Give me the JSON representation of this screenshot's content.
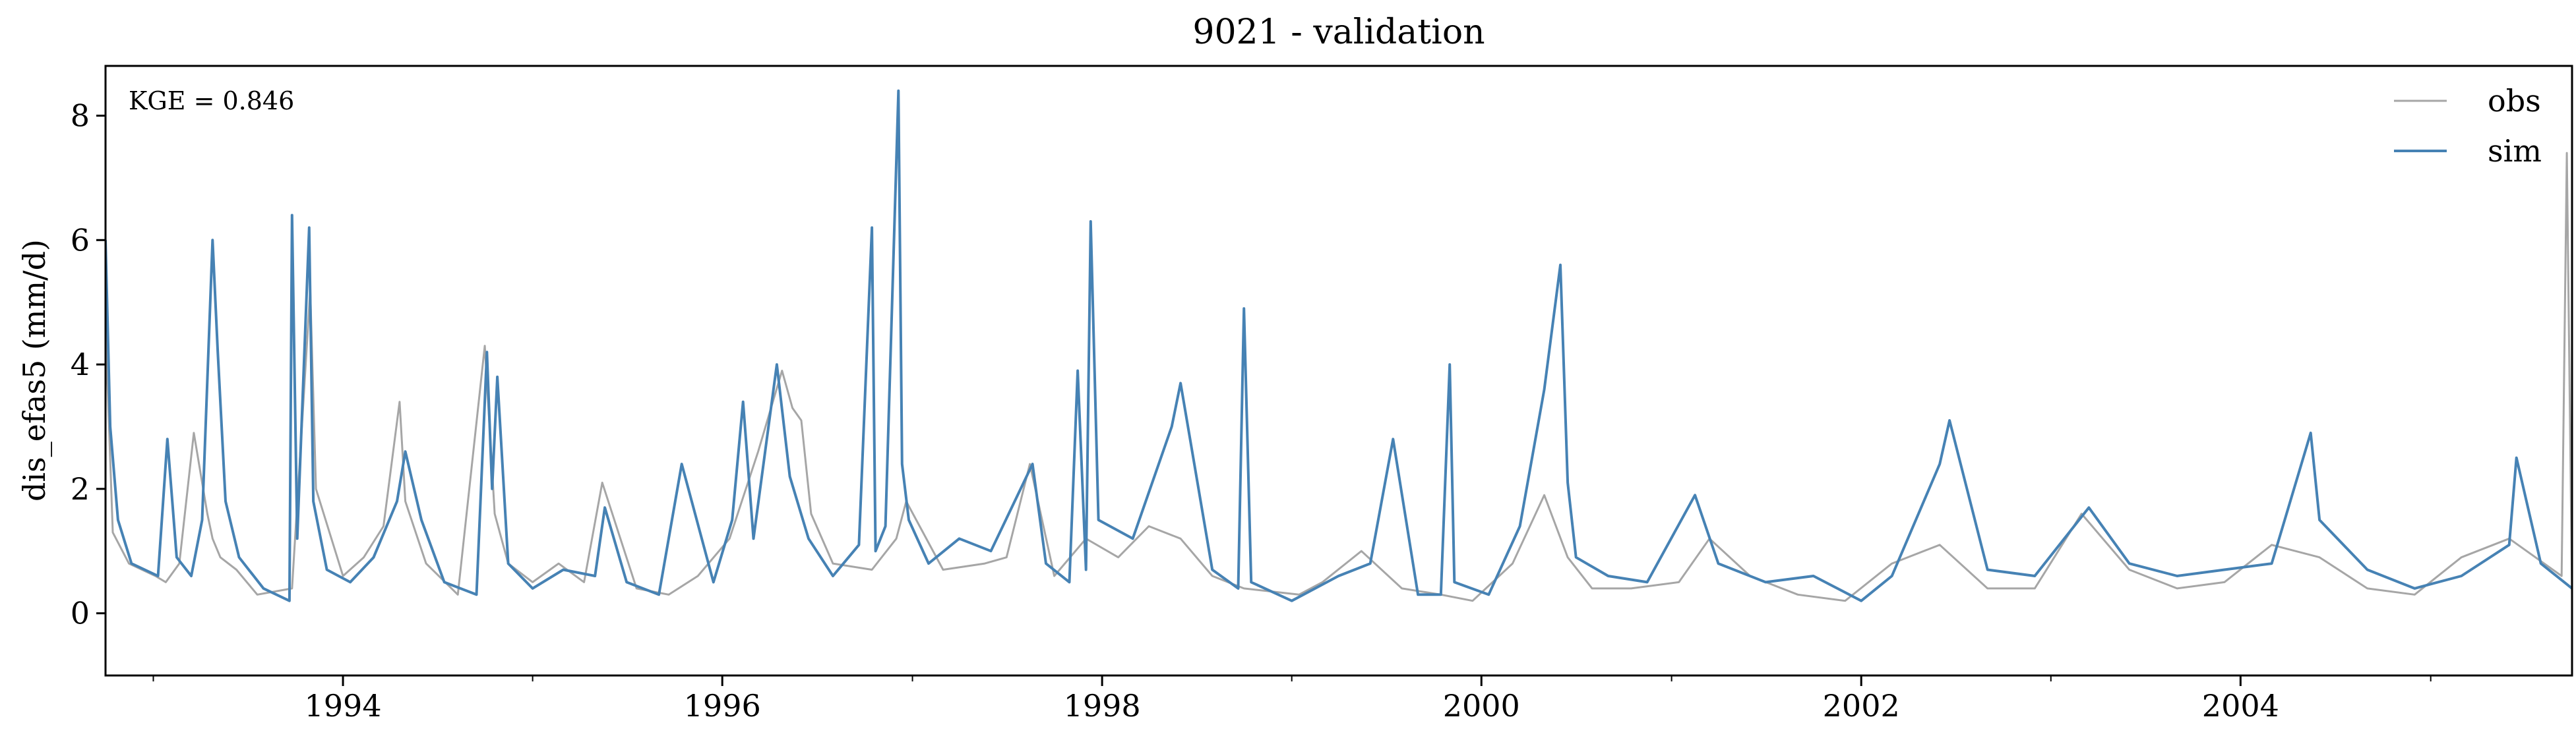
{
  "chart_data": {
    "type": "line",
    "title": "9021 - validation",
    "ylabel": "dis_efas5 (mm/d)",
    "xlabel": "",
    "annotation": "KGE = 0.846",
    "legend_position": "top-right",
    "grid": false,
    "xlim": [
      "1992-10-01",
      "2005-09-30"
    ],
    "ylim": [
      -1,
      8.8
    ],
    "y_ticks": [
      0,
      2,
      4,
      6,
      8
    ],
    "x_ticks": [
      "1994",
      "1996",
      "1998",
      "2000",
      "2002",
      "2004"
    ],
    "series": [
      {
        "name": "obs",
        "color": "#a6a6a6",
        "x": [
          "1992-10-01",
          "1992-10-15",
          "1992-11-15",
          "1993-01-05",
          "1993-01-25",
          "1993-02-20",
          "1993-03-20",
          "1993-04-15",
          "1993-04-25",
          "1993-05-10",
          "1993-06-10",
          "1993-07-20",
          "1993-09-25",
          "1993-10-30",
          "1993-11-10",
          "1994-01-01",
          "1994-02-10",
          "1994-03-20",
          "1994-04-20",
          "1994-05-01",
          "1994-06-10",
          "1994-08-10",
          "1994-10-01",
          "1994-10-20",
          "1994-11-15",
          "1995-01-01",
          "1995-02-20",
          "1995-04-10",
          "1995-05-15",
          "1995-07-20",
          "1995-09-20",
          "1995-11-15",
          "1996-01-15",
          "1996-03-10",
          "1996-04-25",
          "1996-05-15",
          "1996-06-01",
          "1996-06-20",
          "1996-08-01",
          "1996-10-15",
          "1996-12-01",
          "1996-12-20",
          "1997-03-01",
          "1997-05-20",
          "1997-07-01",
          "1997-08-15",
          "1997-10-01",
          "1997-12-01",
          "1998-02-01",
          "1998-04-01",
          "1998-06-01",
          "1998-08-01",
          "1998-10-01",
          "1999-01-15",
          "1999-03-01",
          "1999-05-15",
          "1999-08-01",
          "1999-10-15",
          "1999-12-15",
          "2000-03-01",
          "2000-05-01",
          "2000-06-15",
          "2000-08-01",
          "2000-10-15",
          "2001-01-15",
          "2001-03-15",
          "2001-06-01",
          "2001-09-01",
          "2001-12-01",
          "2002-03-01",
          "2002-06-01",
          "2002-09-01",
          "2002-12-01",
          "2003-03-01",
          "2003-06-01",
          "2003-09-01",
          "2003-12-01",
          "2004-03-01",
          "2004-06-01",
          "2004-09-01",
          "2004-12-01",
          "2005-03-01",
          "2005-06-01",
          "2005-09-10",
          "2005-09-20",
          "2005-09-30"
        ],
        "values": [
          4.6,
          1.3,
          0.8,
          0.6,
          0.5,
          0.8,
          2.9,
          1.6,
          1.2,
          0.9,
          0.7,
          0.3,
          0.4,
          5.2,
          2.0,
          0.6,
          0.9,
          1.4,
          3.4,
          1.8,
          0.8,
          0.3,
          4.3,
          1.6,
          0.8,
          0.5,
          0.8,
          0.5,
          2.1,
          0.4,
          0.3,
          0.6,
          1.2,
          2.6,
          3.9,
          3.3,
          3.1,
          1.6,
          0.8,
          0.7,
          1.2,
          1.8,
          0.7,
          0.8,
          0.9,
          2.4,
          0.6,
          1.2,
          0.9,
          1.4,
          1.2,
          0.6,
          0.4,
          0.3,
          0.5,
          1.0,
          0.4,
          0.3,
          0.2,
          0.8,
          1.9,
          0.9,
          0.4,
          0.4,
          0.5,
          1.2,
          0.6,
          0.3,
          0.2,
          0.8,
          1.1,
          0.4,
          0.4,
          1.6,
          0.7,
          0.4,
          0.5,
          1.1,
          0.9,
          0.4,
          0.3,
          0.9,
          1.2,
          0.6,
          7.4,
          0.3
        ]
      },
      {
        "name": "sim",
        "color": "#4682b4",
        "x": [
          "1992-10-01",
          "1992-10-10",
          "1992-10-25",
          "1992-11-20",
          "1993-01-10",
          "1993-01-28",
          "1993-02-15",
          "1993-03-15",
          "1993-04-05",
          "1993-04-25",
          "1993-05-05",
          "1993-05-20",
          "1993-06-15",
          "1993-08-01",
          "1993-09-20",
          "1993-09-25",
          "1993-10-05",
          "1993-10-28",
          "1993-11-05",
          "1993-12-01",
          "1994-01-15",
          "1994-03-01",
          "1994-04-15",
          "1994-05-01",
          "1994-06-01",
          "1994-07-15",
          "1994-09-15",
          "1994-10-05",
          "1994-10-15",
          "1994-10-25",
          "1994-11-15",
          "1995-01-01",
          "1995-03-01",
          "1995-05-01",
          "1995-05-20",
          "1995-07-01",
          "1995-09-01",
          "1995-10-15",
          "1995-12-15",
          "1996-01-20",
          "1996-02-10",
          "1996-03-01",
          "1996-04-15",
          "1996-05-10",
          "1996-06-15",
          "1996-08-01",
          "1996-09-20",
          "1996-10-15",
          "1996-10-22",
          "1996-11-10",
          "1996-12-05",
          "1996-12-12",
          "1996-12-25",
          "1997-02-01",
          "1997-04-01",
          "1997-06-01",
          "1997-08-20",
          "1997-09-15",
          "1997-10-30",
          "1997-11-15",
          "1997-12-01",
          "1997-12-10",
          "1997-12-25",
          "1998-03-01",
          "1998-05-15",
          "1998-06-01",
          "1998-08-01",
          "1998-09-20",
          "1998-10-01",
          "1998-10-15",
          "1999-01-01",
          "1999-04-01",
          "1999-06-01",
          "1999-07-15",
          "1999-09-01",
          "1999-10-15",
          "1999-11-01",
          "1999-11-10",
          "2000-01-15",
          "2000-03-15",
          "2000-05-01",
          "2000-06-01",
          "2000-06-15",
          "2000-07-01",
          "2000-09-01",
          "2000-11-15",
          "2001-02-15",
          "2001-04-01",
          "2001-07-01",
          "2001-10-01",
          "2002-01-01",
          "2002-03-01",
          "2002-06-01",
          "2002-06-20",
          "2002-09-01",
          "2002-12-01",
          "2003-03-15",
          "2003-06-01",
          "2003-09-01",
          "2003-12-01",
          "2004-03-01",
          "2004-05-15",
          "2004-06-01",
          "2004-09-01",
          "2004-12-01",
          "2005-03-01",
          "2005-06-01",
          "2005-06-15",
          "2005-08-01",
          "2005-09-30"
        ],
        "values": [
          6.0,
          3.0,
          1.5,
          0.8,
          0.6,
          2.8,
          0.9,
          0.6,
          1.5,
          6.0,
          4.2,
          1.8,
          0.9,
          0.4,
          0.2,
          6.4,
          1.2,
          6.2,
          1.8,
          0.7,
          0.5,
          0.9,
          1.8,
          2.6,
          1.5,
          0.5,
          0.3,
          4.2,
          2.0,
          3.8,
          0.8,
          0.4,
          0.7,
          0.6,
          1.7,
          0.5,
          0.3,
          2.4,
          0.5,
          1.5,
          3.4,
          1.2,
          4.0,
          2.2,
          1.2,
          0.6,
          1.1,
          6.2,
          1.0,
          1.4,
          8.4,
          2.4,
          1.5,
          0.8,
          1.2,
          1.0,
          2.4,
          0.8,
          0.5,
          3.9,
          0.7,
          6.3,
          1.5,
          1.2,
          3.0,
          3.7,
          0.7,
          0.4,
          4.9,
          0.5,
          0.2,
          0.6,
          0.8,
          2.8,
          0.3,
          0.3,
          4.0,
          0.5,
          0.3,
          1.4,
          3.6,
          5.6,
          2.1,
          0.9,
          0.6,
          0.5,
          1.9,
          0.8,
          0.5,
          0.6,
          0.2,
          0.6,
          2.4,
          3.1,
          0.7,
          0.6,
          1.7,
          0.8,
          0.6,
          0.7,
          0.8,
          2.9,
          1.5,
          0.7,
          0.4,
          0.6,
          1.1,
          2.5,
          0.8,
          0.4
        ]
      }
    ]
  }
}
